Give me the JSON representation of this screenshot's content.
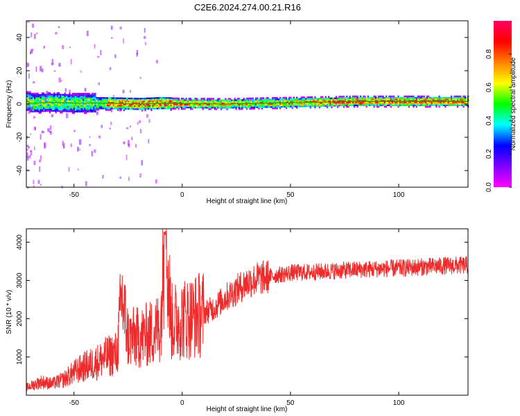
{
  "title": "C2E6.2024.274.00.21.R16",
  "colors": {
    "line": "#ee2a2a",
    "ridge": "#00aa00",
    "background": "#ffffff"
  },
  "chart_data": [
    {
      "type": "heatmap",
      "xlabel": "Height of straight line (km)",
      "ylabel": "Frequency (Hz)",
      "xlim": [
        -72,
        132
      ],
      "ylim": [
        -50,
        50
      ],
      "xticks": [
        -50,
        0,
        50,
        100
      ],
      "yticks": [
        -40,
        -20,
        0,
        20,
        40
      ],
      "ridge": {
        "description": "dominant frequency band",
        "points": [
          {
            "x": -70,
            "y": 0.5
          },
          {
            "x": -60,
            "y": 1.0
          },
          {
            "x": -50,
            "y": 0.5
          },
          {
            "x": -40,
            "y": 0.5
          },
          {
            "x": -30,
            "y": 0.3
          },
          {
            "x": -20,
            "y": 0.0
          },
          {
            "x": -10,
            "y": 0.5
          },
          {
            "x": 0,
            "y": 0.2
          },
          {
            "x": 20,
            "y": 0.0
          },
          {
            "x": 40,
            "y": 0.5
          },
          {
            "x": 60,
            "y": 1.0
          },
          {
            "x": 80,
            "y": 1.5
          },
          {
            "x": 100,
            "y": 1.5
          },
          {
            "x": 120,
            "y": 1.5
          },
          {
            "x": 132,
            "y": 1.5
          }
        ]
      },
      "colorbar": {
        "label": "Normalized spectral amplitude",
        "ticks": [
          "0.0",
          "0.2",
          "0.4",
          "0.6",
          "0.8"
        ],
        "range": [
          0,
          1
        ],
        "colormap": [
          "#ff00ff",
          "#8000ff",
          "#0000ff",
          "#00ffff",
          "#00ff00",
          "#ffff00",
          "#ff8000",
          "#ff0000",
          "#ff0060"
        ]
      }
    },
    {
      "type": "line",
      "xlabel": "Height of straight line (km)",
      "ylabel": "SNR (10 * v/v)",
      "xlim": [
        -72,
        132
      ],
      "ylim": [
        0,
        4350
      ],
      "xticks": [
        -50,
        0,
        50,
        100
      ],
      "yticks": [
        1000,
        2000,
        3000,
        4000
      ],
      "series": [
        {
          "x": [
            -72,
            -65,
            -60,
            -55,
            -50,
            -45,
            -40,
            -35,
            -30,
            -28,
            -25,
            -20,
            -15,
            -10,
            -8,
            -5,
            0,
            5,
            10,
            15,
            20,
            25,
            30,
            35,
            40,
            45,
            50,
            60,
            70,
            80,
            90,
            100,
            110,
            120,
            132
          ],
          "y": [
            200,
            350,
            300,
            400,
            600,
            750,
            850,
            1000,
            1100,
            2600,
            1500,
            1500,
            1600,
            1800,
            4300,
            1900,
            2000,
            2050,
            2150,
            2300,
            2550,
            2750,
            2950,
            3050,
            3100,
            3150,
            3200,
            3220,
            3250,
            3280,
            3300,
            3320,
            3350,
            3380,
            3400
          ]
        }
      ]
    }
  ]
}
